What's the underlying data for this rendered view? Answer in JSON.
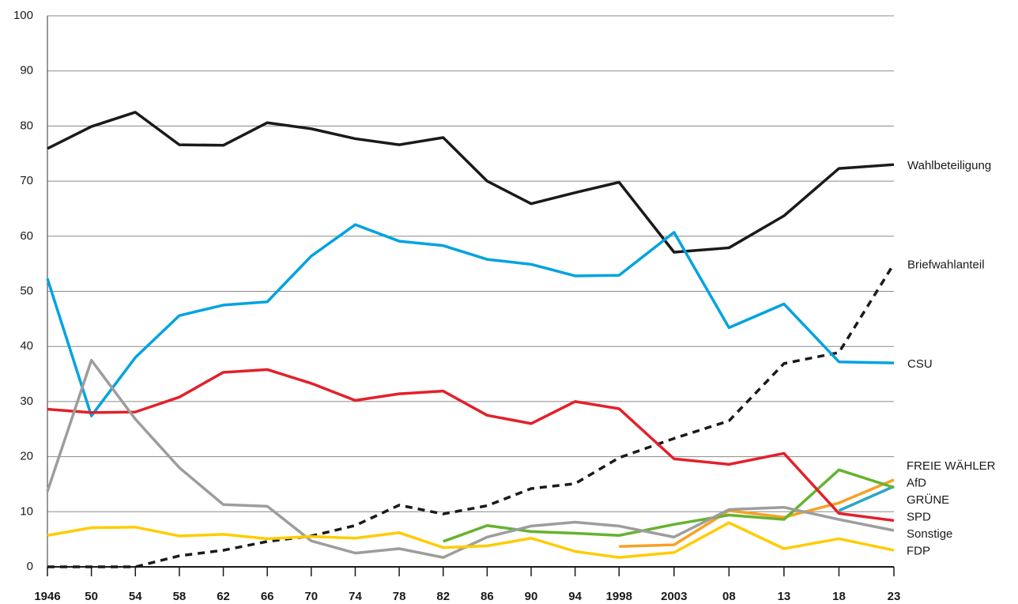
{
  "chart_data": {
    "type": "line",
    "x": [
      1946,
      1950,
      1954,
      1958,
      1962,
      1966,
      1970,
      1974,
      1978,
      1982,
      1986,
      1990,
      1994,
      1998,
      2003,
      2008,
      2013,
      2018,
      2023
    ],
    "xlim": [
      1946,
      2023
    ],
    "xticks": [
      1946,
      {
        "value": 1950,
        "label": "50"
      },
      {
        "value": 1954,
        "label": "54"
      },
      {
        "value": 1958,
        "label": "58"
      },
      {
        "value": 1962,
        "label": "62"
      },
      {
        "value": 1966,
        "label": "66"
      },
      {
        "value": 1970,
        "label": "70"
      },
      {
        "value": 1974,
        "label": "74"
      },
      {
        "value": 1978,
        "label": "78"
      },
      {
        "value": 1982,
        "label": "82"
      },
      {
        "value": 1986,
        "label": "86"
      },
      {
        "value": 1990,
        "label": "90"
      },
      {
        "value": 1994,
        "label": "94"
      },
      1998,
      2003,
      {
        "value": 2008,
        "label": "08"
      },
      {
        "value": 2013,
        "label": "13"
      },
      {
        "value": 2018,
        "label": "18"
      },
      {
        "value": 2023,
        "label": "23"
      }
    ],
    "ylim": [
      0,
      100
    ],
    "yticks": [
      0,
      10,
      20,
      30,
      40,
      50,
      60,
      70,
      80,
      90,
      100
    ],
    "grid": true,
    "series": [
      {
        "name": "Wahlbeteiligung",
        "color": "#1a1a1a",
        "values": [
          75.9,
          79.9,
          82.5,
          76.6,
          76.5,
          80.6,
          79.5,
          77.7,
          76.6,
          77.9,
          70.0,
          65.9,
          67.9,
          69.8,
          57.1,
          57.9,
          63.7,
          72.3,
          73.0
        ]
      },
      {
        "name": "Briefwahlanteil",
        "color": "#1a1a1a",
        "dash": true,
        "values": [
          0,
          0,
          0,
          2.0,
          3.0,
          4.6,
          5.6,
          7.5,
          11.2,
          9.6,
          11.1,
          14.2,
          15.1,
          19.8,
          23.3,
          26.5,
          36.9,
          38.9,
          55.0
        ]
      },
      {
        "name": "CSU",
        "color": "#00a3e0",
        "values": [
          52.3,
          27.4,
          38.0,
          45.6,
          47.5,
          48.1,
          56.4,
          62.1,
          59.1,
          58.3,
          55.8,
          54.9,
          52.8,
          52.9,
          60.7,
          43.4,
          47.7,
          37.2,
          37.0
        ]
      },
      {
        "name": "FREIE WÄHLER",
        "color": "#f7a125",
        "values": [
          null,
          null,
          null,
          null,
          null,
          null,
          null,
          null,
          null,
          null,
          null,
          null,
          null,
          3.7,
          4.0,
          10.2,
          9.0,
          11.6,
          15.8
        ]
      },
      {
        "name": "AfD",
        "color": "#2aa6c6",
        "values": [
          null,
          null,
          null,
          null,
          null,
          null,
          null,
          null,
          null,
          null,
          null,
          null,
          null,
          null,
          null,
          null,
          null,
          10.2,
          14.6
        ]
      },
      {
        "name": "GRÜNE",
        "color": "#64b32e",
        "values": [
          null,
          null,
          null,
          null,
          null,
          null,
          null,
          null,
          null,
          4.6,
          7.5,
          6.4,
          6.1,
          5.7,
          7.7,
          9.4,
          8.6,
          17.6,
          14.4
        ]
      },
      {
        "name": "SPD",
        "color": "#e3202a",
        "values": [
          28.6,
          28.0,
          28.1,
          30.8,
          35.3,
          35.8,
          33.3,
          30.2,
          31.4,
          31.9,
          27.5,
          26.0,
          30.0,
          28.7,
          19.6,
          18.6,
          20.6,
          9.7,
          8.4
        ]
      },
      {
        "name": "Sonstige",
        "color": "#9d9d9c",
        "values": [
          13.7,
          37.5,
          26.8,
          18.0,
          11.3,
          11.0,
          4.7,
          2.5,
          3.3,
          1.7,
          5.4,
          7.4,
          8.1,
          7.4,
          5.4,
          10.4,
          10.8,
          8.6,
          6.6
        ]
      },
      {
        "name": "FDP",
        "color": "#ffcc00",
        "values": [
          5.7,
          7.1,
          7.2,
          5.6,
          5.9,
          5.1,
          5.5,
          5.2,
          6.2,
          3.5,
          3.8,
          5.2,
          2.8,
          1.7,
          2.6,
          8.0,
          3.3,
          5.1,
          3.0
        ]
      }
    ]
  }
}
